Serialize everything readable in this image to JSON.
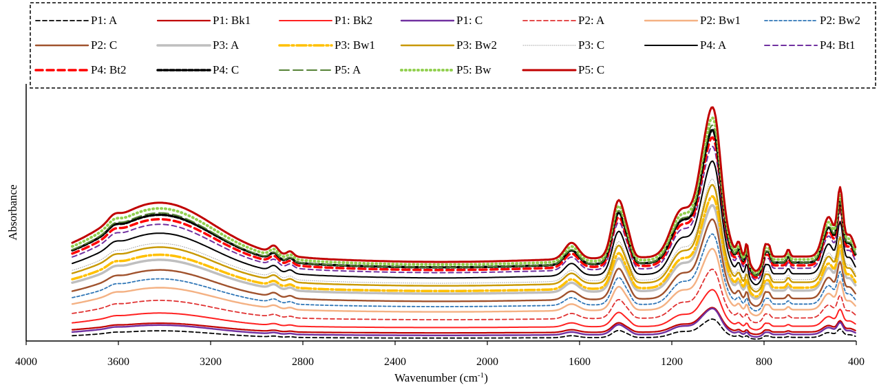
{
  "chart_data": {
    "type": "line",
    "title": "",
    "xlabel": "Wavenumber (cm",
    "xlabel_sup": "-1",
    "xlabel_close": ")",
    "ylabel": "Absorbance",
    "xlim": [
      4000,
      400
    ],
    "x_reversed": true,
    "ylim": [
      0,
      100
    ],
    "y_tick_labels": false,
    "x_ticks": [
      4000,
      3600,
      3200,
      2800,
      2400,
      2000,
      1600,
      1200,
      800,
      400
    ],
    "x_tick_labels": [
      "4000",
      "3600",
      "3200",
      "2800",
      "2400",
      "2000",
      "1600",
      "1200",
      "800",
      "400"
    ],
    "grid": false,
    "legend_position": "top",
    "legend_columns": 7,
    "series": [
      {
        "name": "P1: A",
        "color": "#000000",
        "width": 1.8,
        "dash": "6,4",
        "offset": 1,
        "scale": 0.12
      },
      {
        "name": "P1: Bk1",
        "color": "#c00000",
        "width": 2.2,
        "dash": "",
        "offset": 3,
        "scale": 0.16
      },
      {
        "name": "P1: Bk2",
        "color": "#ff2020",
        "width": 2.0,
        "dash": "",
        "offset": 5,
        "scale": 0.24
      },
      {
        "name": "P1: C",
        "color": "#7030a0",
        "width": 2.4,
        "dash": "",
        "offset": 2,
        "scale": 0.17
      },
      {
        "name": "P2: A",
        "color": "#e03030",
        "width": 1.8,
        "dash": "6,4",
        "offset": 8,
        "scale": 0.32
      },
      {
        "name": "P2: Bw1",
        "color": "#f4b183",
        "width": 2.4,
        "dash": "",
        "offset": 11,
        "scale": 0.4
      },
      {
        "name": "P2: Bw2",
        "color": "#2e75b6",
        "width": 1.8,
        "dash": "4,3",
        "offset": 13,
        "scale": 0.46
      },
      {
        "name": "P2: C",
        "color": "#a0522d",
        "width": 2.4,
        "dash": "",
        "offset": 15,
        "scale": 0.52
      },
      {
        "name": "P3: A",
        "color": "#bfbfbf",
        "width": 3.5,
        "dash": "",
        "offset": 18,
        "scale": 0.56
      },
      {
        "name": "P3: Bw1",
        "color": "#ffc000",
        "width": 3.5,
        "dash": "14,4,3,4",
        "offset": 19,
        "scale": 0.6
      },
      {
        "name": "P3: Bw2",
        "color": "#c89800",
        "width": 2.4,
        "dash": "",
        "offset": 21,
        "scale": 0.64
      },
      {
        "name": "P3: C",
        "color": "#a6a6a6",
        "width": 1.0,
        "dash": "1,2",
        "offset": 22,
        "scale": 0.66
      },
      {
        "name": "P4: A",
        "color": "#000000",
        "width": 2.0,
        "dash": "",
        "offset": 24,
        "scale": 0.74
      },
      {
        "name": "P4: Bt1",
        "color": "#7030a0",
        "width": 2.0,
        "dash": "7,5",
        "offset": 26,
        "scale": 0.8
      },
      {
        "name": "P4: Bt2",
        "color": "#ff0000",
        "width": 3.5,
        "dash": "10,6",
        "offset": 27,
        "scale": 0.84
      },
      {
        "name": "P4: C",
        "color": "#000000",
        "width": 3.5,
        "dash": "6,3",
        "offset": 28,
        "scale": 0.87
      },
      {
        "name": "P5: A",
        "color": "#548235",
        "width": 2.0,
        "dash": "14,6",
        "offset": 28,
        "scale": 0.9
      },
      {
        "name": "P5: Bw",
        "color": "#92d050",
        "width": 4.0,
        "dash": "1,5",
        "offset": 29,
        "scale": 0.93
      },
      {
        "name": "P5: C",
        "color": "#c00000",
        "width": 3.0,
        "dash": "",
        "offset": 30,
        "scale": 0.98
      }
    ]
  }
}
